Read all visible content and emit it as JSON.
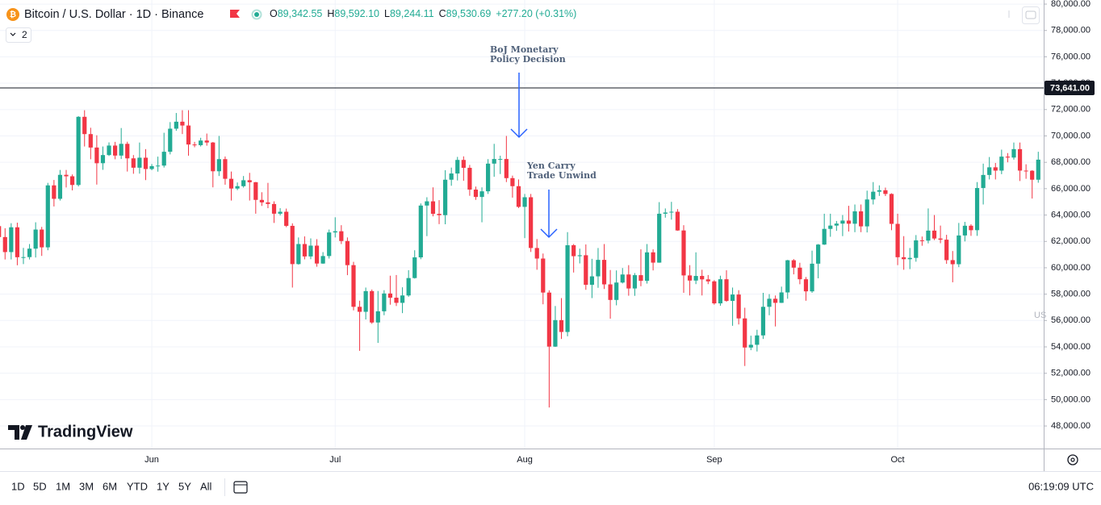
{
  "chart_data": {
    "type": "candlestick",
    "legend": {
      "symbol": "Bitcoin / U.S. Dollar · 1D · Binance",
      "open_label": "O",
      "open": "89,342.55",
      "high_label": "H",
      "high": "89,592.10",
      "low_label": "L",
      "low": "89,244.11",
      "close_label": "C",
      "close": "89,530.69",
      "change": "+277.20 (+0.31%)",
      "indicators": "2"
    },
    "categories": [
      null,
      null,
      null,
      null,
      null,
      null,
      null,
      null,
      null,
      null,
      null,
      null,
      null,
      null,
      null,
      null,
      null,
      null,
      null,
      null,
      null,
      null,
      null,
      null,
      null,
      "Jun",
      null,
      null,
      null,
      null,
      null,
      null,
      null,
      null,
      null,
      null,
      null,
      null,
      null,
      null,
      null,
      null,
      null,
      null,
      null,
      null,
      null,
      null,
      null,
      null,
      null,
      null,
      null,
      null,
      null,
      "Jul",
      null,
      null,
      null,
      null,
      null,
      null,
      null,
      null,
      null,
      null,
      null,
      null,
      null,
      null,
      null,
      null,
      null,
      null,
      null,
      null,
      null,
      null,
      null,
      null,
      null,
      null,
      null,
      null,
      null,
      null,
      "Aug",
      null,
      null,
      null,
      null,
      null,
      null,
      null,
      null,
      null,
      null,
      null,
      null,
      null,
      null,
      null,
      null,
      null,
      null,
      null,
      null,
      null,
      null,
      null,
      null,
      null,
      null,
      null,
      null,
      null,
      null,
      "Sep",
      null,
      null,
      null,
      null,
      null,
      null,
      null,
      null,
      null,
      null,
      null,
      null,
      null,
      null,
      null,
      null,
      null,
      null,
      null,
      null,
      null,
      null,
      null,
      null,
      null,
      null,
      null,
      null,
      null,
      "Oct",
      null,
      null,
      null,
      null,
      null,
      null,
      null,
      null,
      null,
      null,
      null,
      null,
      null,
      null,
      null,
      null,
      null,
      null,
      null,
      null,
      null,
      null,
      null
    ],
    "open": [
      63160,
      62330,
      61190,
      63070,
      60800,
      60810,
      61450,
      62900,
      61550,
      66250,
      65230,
      67050,
      66940,
      66280,
      71450,
      70140,
      69120,
      67930,
      68550,
      69270,
      68510,
      69400,
      68300,
      67590,
      68350,
      67490,
      67710,
      67750,
      68800,
      70550,
      71080,
      70790,
      69350,
      69300,
      69650,
      69500,
      67320,
      68240,
      66750,
      66010,
      66190,
      66640,
      66490,
      65150,
      64960,
      64840,
      64100,
      64250,
      63180,
      60280,
      61800,
      60860,
      61680,
      60320,
      60890,
      62680,
      62770,
      62030,
      60200,
      57040,
      56660,
      58230,
      55850,
      56700,
      58050,
      57730,
      57340,
      57900,
      59220,
      60790,
      64720,
      65040,
      64090,
      63990,
      66680,
      67150,
      68180,
      67580,
      65930,
      65370,
      65800,
      67900,
      68250,
      68250,
      66800,
      66190,
      64620,
      65350,
      61500,
      60700,
      58120,
      54020,
      56030,
      55130,
      61710,
      60880,
      60950,
      58710,
      59350,
      60600,
      58740,
      57560,
      58880,
      59490,
      58430,
      59440,
      59010,
      61170,
      60390,
      64100,
      64190,
      64250,
      62830,
      59420,
      59030,
      59380,
      59120,
      58970,
      57300,
      59130,
      57490,
      57970,
      56160,
      53950,
      54160,
      54870,
      57040,
      57650,
      57340,
      58130,
      60570,
      60010,
      59130,
      58210,
      60310,
      61760,
      62950,
      63200,
      63350,
      63580,
      63340,
      64280,
      63140,
      65180,
      65770,
      65880,
      65600,
      63330,
      60800,
      60650,
      60750,
      62080,
      62060,
      62820,
      62220,
      62130,
      60580,
      60270,
      62450,
      63190,
      62850,
      66050,
      67040,
      67620,
      67370,
      68430,
      68360,
      69000,
      67370,
      67360,
      66680
    ],
    "high": [
      64420,
      63000,
      63380,
      63420,
      61510,
      61800,
      63450,
      63100,
      66440,
      66660,
      67420,
      67420,
      67080,
      71500,
      71950,
      70620,
      70050,
      69200,
      69510,
      69550,
      70600,
      69560,
      68550,
      69500,
      69000,
      67870,
      68430,
      70240,
      71050,
      71740,
      71950,
      71950,
      69550,
      69860,
      70180,
      69540,
      70000,
      68440,
      67300,
      66470,
      66960,
      67200,
      66510,
      65730,
      66440,
      65040,
      64520,
      64490,
      63370,
      62300,
      62380,
      62230,
      62170,
      61190,
      62900,
      63830,
      63230,
      62300,
      60450,
      57500,
      58500,
      58350,
      58240,
      58300,
      59400,
      59450,
      58520,
      59820,
      61330,
      64880,
      65350,
      66100,
      65130,
      67400,
      67600,
      68410,
      68450,
      67800,
      66160,
      66100,
      68240,
      69400,
      68500,
      70000,
      66990,
      66700,
      65600,
      65600,
      62180,
      61080,
      58290,
      57100,
      57700,
      62700,
      61800,
      61450,
      61770,
      60680,
      61500,
      61800,
      59830,
      59800,
      59980,
      60200,
      59600,
      61400,
      61800,
      61400,
      64980,
      64500,
      65000,
      64450,
      63230,
      60200,
      61170,
      59850,
      59450,
      59060,
      59400,
      59810,
      58500,
      58300,
      56970,
      54850,
      55300,
      58100,
      58000,
      57900,
      58570,
      60600,
      60660,
      60380,
      59300,
      61300,
      61800,
      64100,
      64100,
      63550,
      64000,
      64700,
      64800,
      64800,
      65850,
      66500,
      66250,
      66080,
      65650,
      64100,
      62400,
      61500,
      62480,
      62370,
      64500,
      64000,
      63200,
      62500,
      61270,
      63400,
      63480,
      63300,
      66500,
      67900,
      68400,
      67950,
      68960,
      68700,
      69500,
      69500,
      67850,
      67400,
      68800
    ],
    "low": [
      62050,
      60630,
      60630,
      60190,
      60280,
      60630,
      60780,
      60900,
      61330,
      64650,
      65100,
      66090,
      65870,
      66170,
      69200,
      68230,
      66310,
      67430,
      68480,
      68230,
      68250,
      67300,
      67130,
      67140,
      66650,
      67400,
      67290,
      67600,
      68600,
      70390,
      70140,
      68500,
      69140,
      69200,
      69260,
      66100,
      66960,
      66300,
      65100,
      65890,
      66080,
      65100,
      64100,
      64690,
      64520,
      63400,
      63970,
      63080,
      58500,
      60240,
      60640,
      60650,
      60080,
      60300,
      60700,
      62300,
      61800,
      59440,
      56770,
      53700,
      56080,
      55750,
      54300,
      56400,
      57200,
      57100,
      56560,
      57800,
      59180,
      60650,
      62400,
      63900,
      63310,
      63300,
      66220,
      66620,
      66600,
      65460,
      65150,
      63450,
      65600,
      66900,
      67110,
      66500,
      65320,
      64530,
      62250,
      61200,
      59850,
      57230,
      49400,
      54000,
      54600,
      54800,
      59640,
      60330,
      58330,
      57700,
      58480,
      58390,
      56140,
      57150,
      58810,
      57880,
      57870,
      58600,
      58800,
      59800,
      60380,
      63800,
      63650,
      62800,
      58100,
      57900,
      58760,
      57900,
      58760,
      57200,
      57120,
      57420,
      55600,
      55700,
      52550,
      53750,
      53650,
      54600,
      56400,
      55550,
      57330,
      57650,
      59500,
      58750,
      57500,
      58100,
      59200,
      61730,
      62350,
      62800,
      62400,
      62750,
      62700,
      62700,
      62680,
      64800,
      65450,
      65440,
      62850,
      60200,
      59850,
      59900,
      60460,
      61670,
      61850,
      62100,
      61860,
      60300,
      58900,
      60050,
      62000,
      62420,
      62420,
      64800,
      66700,
      66700,
      67100,
      68000,
      68200,
      66580,
      66750,
      65250,
      66450
    ],
    "close": [
      62330,
      61190,
      63070,
      60800,
      60810,
      61450,
      62900,
      61550,
      66250,
      65230,
      67050,
      66940,
      66280,
      71450,
      70140,
      69120,
      67930,
      68550,
      69270,
      68510,
      69400,
      68300,
      67590,
      68350,
      67490,
      67710,
      67750,
      68800,
      70550,
      71080,
      70790,
      69350,
      69300,
      69650,
      69500,
      67320,
      68240,
      66750,
      66010,
      66190,
      66640,
      66490,
      65150,
      64960,
      64840,
      64100,
      64250,
      63180,
      60280,
      61800,
      60860,
      61680,
      60320,
      60890,
      62680,
      62770,
      62030,
      60200,
      57040,
      56660,
      58230,
      55850,
      56700,
      58050,
      57730,
      57340,
      57900,
      59220,
      60790,
      64720,
      65040,
      64090,
      63990,
      66680,
      67150,
      68180,
      67580,
      65930,
      65370,
      65800,
      67900,
      68250,
      68250,
      66800,
      66190,
      64620,
      65350,
      61500,
      60700,
      58120,
      54020,
      56030,
      55130,
      61710,
      60880,
      60950,
      58710,
      59350,
      60600,
      58740,
      57560,
      58880,
      59490,
      58430,
      59440,
      59010,
      61170,
      60390,
      64100,
      64190,
      64250,
      62830,
      59420,
      59030,
      59380,
      59120,
      58970,
      57300,
      59130,
      57490,
      57970,
      56160,
      53950,
      54160,
      54870,
      57040,
      57650,
      57340,
      58130,
      60570,
      60010,
      59130,
      58210,
      60310,
      61760,
      62950,
      63200,
      63350,
      63580,
      63340,
      64280,
      63140,
      65180,
      65770,
      65880,
      65600,
      63330,
      60800,
      60650,
      60750,
      62080,
      62060,
      62820,
      62220,
      62130,
      60580,
      60270,
      62450,
      63190,
      62850,
      66050,
      67040,
      67620,
      67370,
      68430,
      68360,
      69000,
      67370,
      67360,
      66680,
      68200
    ],
    "up_color": "#22ab94",
    "down_color": "#f23645",
    "ylim": [
      46290,
      80310
    ],
    "yticks": [
      {
        "value": 48000,
        "label": "48,000.00"
      },
      {
        "value": 50000,
        "label": "50,000.00"
      },
      {
        "value": 52000,
        "label": "52,000.00"
      },
      {
        "value": 54000,
        "label": "54,000.00"
      },
      {
        "value": 56000,
        "label": "56,000.00"
      },
      {
        "value": 58000,
        "label": "58,000.00"
      },
      {
        "value": 60000,
        "label": "60,000.00"
      },
      {
        "value": 62000,
        "label": "62,000.00"
      },
      {
        "value": 64000,
        "label": "64,000.00"
      },
      {
        "value": 66000,
        "label": "66,000.00"
      },
      {
        "value": 68000,
        "label": "68,000.00"
      },
      {
        "value": 70000,
        "label": "70,000.00"
      },
      {
        "value": 72000,
        "label": "72,000.00"
      },
      {
        "value": 74000,
        "label": "74,000.00"
      },
      {
        "value": 76000,
        "label": "76,000.00"
      },
      {
        "value": 78000,
        "label": "78,000.00"
      },
      {
        "value": 80000,
        "label": "80,000.00"
      }
    ],
    "grid": true,
    "price_line": {
      "value": 73641,
      "label": "73,641.00"
    },
    "annotations": [
      {
        "lines": [
          "BoJ Monetary",
          "Policy Decision"
        ]
      },
      {
        "lines": [
          "Yen Carry",
          "Trade Unwind"
        ]
      }
    ],
    "axis_note": "US",
    "brand": "TradingView",
    "toolbar": {
      "ranges": [
        "1D",
        "5D",
        "1M",
        "3M",
        "6M",
        "YTD",
        "1Y",
        "5Y",
        "All"
      ],
      "time": "06:19:09 UTC"
    }
  }
}
